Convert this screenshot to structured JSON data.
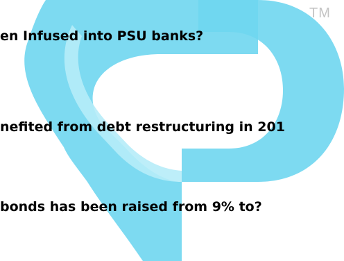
{
  "watermark": {
    "mark": "TM",
    "color": "#6fd6f0"
  },
  "questions": [
    {
      "text": "en Infused into PSU banks?"
    },
    {
      "text": "nefited from debt restructuring in 201"
    },
    {
      "text": "bonds has been raised from 9% to?"
    }
  ]
}
